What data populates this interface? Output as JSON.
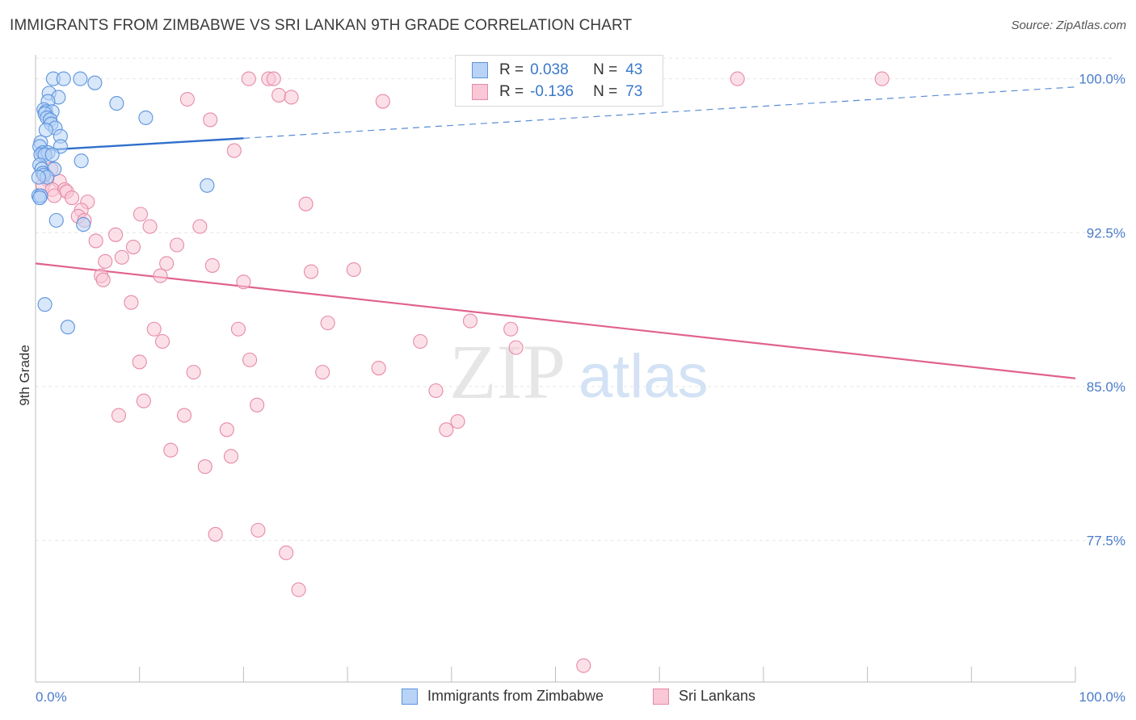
{
  "title": "IMMIGRANTS FROM ZIMBABWE VS SRI LANKAN 9TH GRADE CORRELATION CHART",
  "source": "Source: ZipAtlas.com",
  "watermark": {
    "zip": "ZIP",
    "atlas": "atlas"
  },
  "colors": {
    "blue_fill": "#b8d3f5",
    "blue_stroke": "#5b93dd",
    "blue_line": "#2f6fcb",
    "pink_fill": "#f9c7d6",
    "pink_stroke": "#e68aa8",
    "pink_line": "#e0628f",
    "grid": "#e6e6e6",
    "tick_text": "#4a7cc9"
  },
  "legend": {
    "rows": [
      {
        "r_label": "R =",
        "r_value": "0.038",
        "n_label": "N =",
        "n_value": "43"
      },
      {
        "r_label": "R =",
        "r_value": "-0.136",
        "n_label": "N =",
        "n_value": "73"
      }
    ]
  },
  "bottom_legend": {
    "blue_label": "Immigrants from Zimbabwe",
    "pink_label": "Sri Lankans"
  },
  "chart_data": {
    "type": "scatter",
    "title": "IMMIGRANTS FROM ZIMBABWE VS SRI LANKAN 9TH GRADE CORRELATION CHART",
    "xlabel": "",
    "ylabel": "9th Grade",
    "xlim": [
      0,
      100
    ],
    "ylim": [
      70.6,
      101.4
    ],
    "x_tick_labels": [
      "0.0%",
      "100.0%"
    ],
    "y_ticks": [
      77.5,
      85.0,
      92.5,
      100.0
    ],
    "y_tick_labels": [
      "77.5%",
      "85.0%",
      "92.5%",
      "100.0%"
    ],
    "series": [
      {
        "name": "Immigrants from Zimbabwe",
        "R": 0.038,
        "N": 43,
        "trend": {
          "x0": 0,
          "y0": 96.5,
          "x1": 20,
          "y1": 97.1,
          "dash_to_x": 100,
          "dash_to_y": 99.6
        },
        "points": [
          [
            1.7,
            100.0
          ],
          [
            4.3,
            100.0
          ],
          [
            2.7,
            100.0
          ],
          [
            5.7,
            99.8
          ],
          [
            1.3,
            99.3
          ],
          [
            2.2,
            99.1
          ],
          [
            1.2,
            98.9
          ],
          [
            7.8,
            98.8
          ],
          [
            0.8,
            98.5
          ],
          [
            1.0,
            98.4
          ],
          [
            1.6,
            98.4
          ],
          [
            0.9,
            98.3
          ],
          [
            1.1,
            98.1
          ],
          [
            1.4,
            98.0
          ],
          [
            10.6,
            98.1
          ],
          [
            1.5,
            97.8
          ],
          [
            1.9,
            97.6
          ],
          [
            1.0,
            97.5
          ],
          [
            2.4,
            97.2
          ],
          [
            0.5,
            96.9
          ],
          [
            0.4,
            96.7
          ],
          [
            2.4,
            96.7
          ],
          [
            0.7,
            96.4
          ],
          [
            0.5,
            96.3
          ],
          [
            1.2,
            96.4
          ],
          [
            0.9,
            96.3
          ],
          [
            1.6,
            96.3
          ],
          [
            4.4,
            96.0
          ],
          [
            0.4,
            95.8
          ],
          [
            0.6,
            95.6
          ],
          [
            1.8,
            95.6
          ],
          [
            0.7,
            95.4
          ],
          [
            0.8,
            95.3
          ],
          [
            1.1,
            95.2
          ],
          [
            0.3,
            95.2
          ],
          [
            16.5,
            94.8
          ],
          [
            0.3,
            94.3
          ],
          [
            0.5,
            94.3
          ],
          [
            0.4,
            94.2
          ],
          [
            2.0,
            93.1
          ],
          [
            4.6,
            92.9
          ],
          [
            0.9,
            89.0
          ],
          [
            3.1,
            87.9
          ]
        ]
      },
      {
        "name": "Sri Lankans",
        "R": -0.136,
        "N": 73,
        "trend": {
          "x0": 0,
          "y0": 91.0,
          "x1": 100,
          "y1": 85.4
        },
        "points": [
          [
            20.5,
            100.0
          ],
          [
            22.4,
            100.0
          ],
          [
            22.9,
            100.0
          ],
          [
            67.5,
            100.0
          ],
          [
            81.4,
            100.0
          ],
          [
            23.4,
            99.2
          ],
          [
            14.6,
            99.0
          ],
          [
            24.6,
            99.1
          ],
          [
            33.4,
            98.9
          ],
          [
            16.8,
            98.0
          ],
          [
            19.1,
            96.5
          ],
          [
            1.5,
            95.6
          ],
          [
            0.8,
            95.4
          ],
          [
            1.1,
            95.1
          ],
          [
            2.3,
            95.0
          ],
          [
            0.7,
            94.8
          ],
          [
            1.6,
            94.6
          ],
          [
            2.8,
            94.6
          ],
          [
            3.0,
            94.5
          ],
          [
            1.8,
            94.3
          ],
          [
            3.5,
            94.2
          ],
          [
            5.0,
            94.0
          ],
          [
            26.0,
            93.9
          ],
          [
            4.4,
            93.6
          ],
          [
            10.1,
            93.4
          ],
          [
            4.1,
            93.3
          ],
          [
            4.7,
            93.1
          ],
          [
            11.0,
            92.8
          ],
          [
            15.8,
            92.8
          ],
          [
            7.7,
            92.4
          ],
          [
            5.8,
            92.1
          ],
          [
            13.6,
            91.9
          ],
          [
            9.4,
            91.8
          ],
          [
            8.3,
            91.3
          ],
          [
            6.7,
            91.1
          ],
          [
            12.6,
            91.0
          ],
          [
            17.0,
            90.9
          ],
          [
            26.5,
            90.6
          ],
          [
            30.6,
            90.7
          ],
          [
            12.0,
            90.4
          ],
          [
            6.3,
            90.4
          ],
          [
            6.5,
            90.2
          ],
          [
            20.0,
            90.1
          ],
          [
            9.2,
            89.1
          ],
          [
            28.1,
            88.1
          ],
          [
            41.8,
            88.2
          ],
          [
            11.4,
            87.8
          ],
          [
            19.5,
            87.8
          ],
          [
            45.7,
            87.8
          ],
          [
            12.2,
            87.2
          ],
          [
            37.0,
            87.2
          ],
          [
            46.2,
            86.9
          ],
          [
            10.0,
            86.2
          ],
          [
            20.6,
            86.3
          ],
          [
            33.0,
            85.9
          ],
          [
            15.2,
            85.7
          ],
          [
            27.6,
            85.7
          ],
          [
            38.5,
            84.8
          ],
          [
            10.4,
            84.3
          ],
          [
            21.3,
            84.1
          ],
          [
            8.0,
            83.6
          ],
          [
            14.3,
            83.6
          ],
          [
            40.6,
            83.3
          ],
          [
            39.5,
            82.9
          ],
          [
            18.4,
            82.9
          ],
          [
            13.0,
            81.9
          ],
          [
            18.8,
            81.6
          ],
          [
            16.3,
            81.1
          ],
          [
            21.4,
            78.0
          ],
          [
            17.3,
            77.8
          ],
          [
            24.1,
            76.9
          ],
          [
            25.3,
            75.1
          ],
          [
            52.7,
            71.4
          ]
        ]
      }
    ]
  }
}
